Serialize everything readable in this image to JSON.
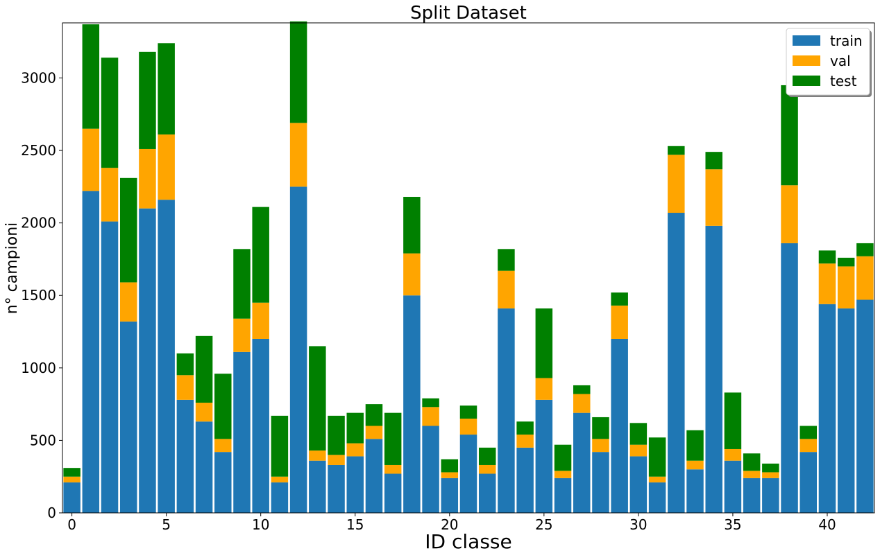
{
  "chart_data": {
    "type": "bar",
    "stacked": true,
    "title": "Split Dataset",
    "xlabel": "ID classe",
    "ylabel": "n° campioni",
    "categories": [
      0,
      1,
      2,
      3,
      4,
      5,
      6,
      7,
      8,
      9,
      10,
      11,
      12,
      13,
      14,
      15,
      16,
      17,
      18,
      19,
      20,
      21,
      22,
      23,
      24,
      25,
      26,
      27,
      28,
      29,
      30,
      31,
      32,
      33,
      34,
      35,
      36,
      37,
      38,
      39,
      40,
      41,
      42
    ],
    "x_ticks": [
      "0",
      "5",
      "10",
      "15",
      "20",
      "25",
      "30",
      "35",
      "40"
    ],
    "x_tick_values": [
      0,
      5,
      10,
      15,
      20,
      25,
      30,
      35,
      40
    ],
    "y_ticks": [
      "0",
      "500",
      "1000",
      "1500",
      "2000",
      "2500",
      "3000"
    ],
    "y_tick_values": [
      0,
      500,
      1000,
      1500,
      2000,
      2500,
      3000
    ],
    "xlim": [
      -0.5,
      42.5
    ],
    "ylim": [
      0,
      3380
    ],
    "grid": false,
    "legend_position": "top-right",
    "series": [
      {
        "name": "train",
        "color": "#1f77b4",
        "values": [
          210,
          2220,
          2010,
          1320,
          2100,
          2160,
          780,
          630,
          420,
          1110,
          1200,
          210,
          2250,
          360,
          330,
          390,
          510,
          270,
          1500,
          600,
          240,
          540,
          270,
          1410,
          450,
          780,
          240,
          690,
          420,
          1200,
          390,
          210,
          2070,
          300,
          1980,
          360,
          240,
          240,
          1860,
          420,
          1440,
          1410,
          1470
        ]
      },
      {
        "name": "val",
        "color": "#ffa500",
        "values": [
          40,
          430,
          370,
          270,
          410,
          450,
          170,
          130,
          90,
          230,
          250,
          40,
          440,
          70,
          70,
          90,
          90,
          60,
          290,
          130,
          40,
          110,
          60,
          260,
          90,
          150,
          50,
          130,
          90,
          230,
          80,
          40,
          400,
          60,
          390,
          80,
          50,
          40,
          400,
          90,
          280,
          290,
          300
        ]
      },
      {
        "name": "test",
        "color": "#008000",
        "values": [
          60,
          720,
          760,
          720,
          670,
          630,
          150,
          460,
          450,
          480,
          660,
          420,
          700,
          720,
          270,
          210,
          150,
          360,
          390,
          60,
          90,
          90,
          120,
          150,
          90,
          480,
          180,
          60,
          150,
          90,
          150,
          270,
          60,
          210,
          120,
          390,
          120,
          60,
          690,
          90,
          90,
          60,
          90
        ]
      }
    ]
  }
}
